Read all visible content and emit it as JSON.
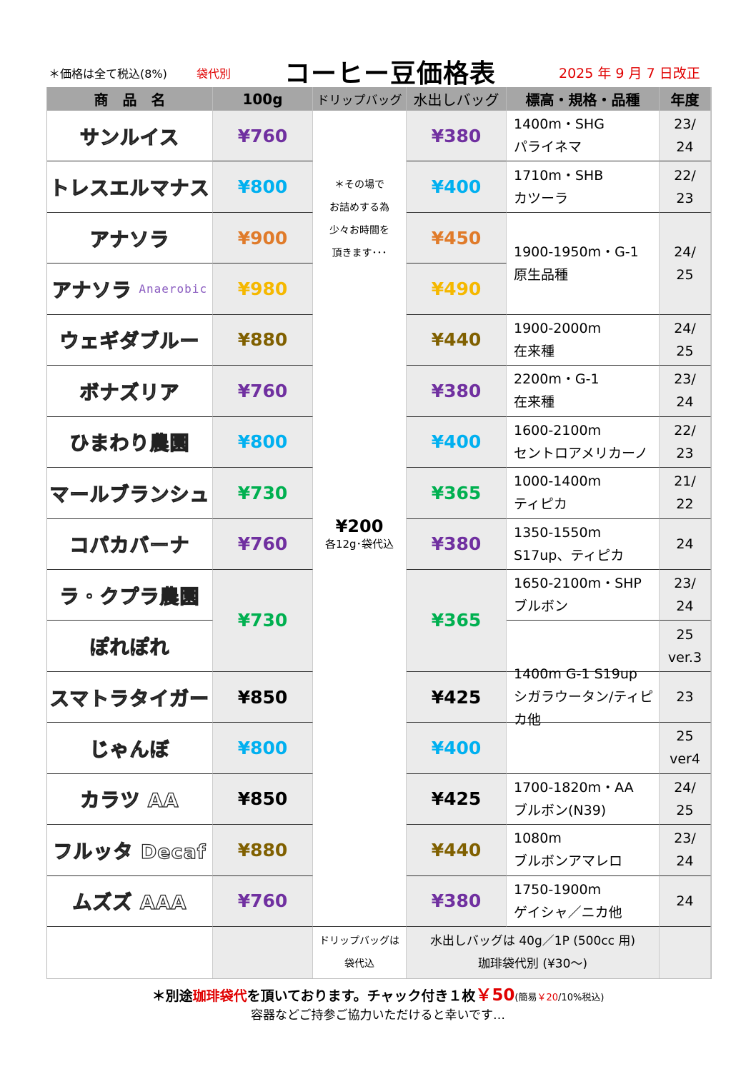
{
  "header": {
    "tax_note": "＊価格は全て税込(8%)",
    "bag_note": "袋代別",
    "title": "コーヒー豆価格表",
    "revised": "2025 年 9 月 7 日改正"
  },
  "columns": [
    "商　品　名",
    "100g",
    "ドリップバッグ",
    "水出しバッグ",
    "標高・規格・品種",
    "年度"
  ],
  "colors": {
    "purple": "#7030a0",
    "cyan": "#00b0f0",
    "orange": "#e07b2a",
    "gold": "#f5b800",
    "olive": "#806000",
    "green": "#00b050",
    "black": "#000000",
    "red": "#e00000"
  },
  "rows": [
    {
      "name": "サンルイス",
      "price": "¥760",
      "water": "¥380",
      "color": "purple",
      "spec": [
        "1400m・SHG",
        "パライネマ"
      ],
      "year": [
        "23/",
        "24"
      ]
    },
    {
      "name": "トレスエルマナス",
      "price": "¥800",
      "water": "¥400",
      "color": "cyan",
      "spec": [
        "1710m・SHB",
        "カツーラ"
      ],
      "year": [
        "22/",
        "23"
      ]
    },
    {
      "name": "アナソラ",
      "price": "¥900",
      "water": "¥450",
      "color": "orange",
      "spec": [
        "1900-1950m・G-1",
        "原生品種"
      ],
      "year": [
        "24/",
        "25"
      ],
      "spec_span": 2
    },
    {
      "name": "アナソラ",
      "name_sub": "Anaerobic",
      "price": "¥980",
      "water": "¥490",
      "color": "gold"
    },
    {
      "name": "ウェギダブルー",
      "price": "¥880",
      "water": "¥440",
      "color": "olive",
      "spec": [
        "1900-2000m",
        "在来種"
      ],
      "year": [
        "24/",
        "25"
      ]
    },
    {
      "name": "ボナズリア",
      "price": "¥760",
      "water": "¥380",
      "color": "purple",
      "spec": [
        "2200m・G-1",
        "在来種"
      ],
      "year": [
        "23/",
        "24"
      ]
    },
    {
      "name": "ひまわり農園",
      "price": "¥800",
      "water": "¥400",
      "color": "cyan",
      "spec": [
        "1600-2100m",
        "セントロアメリカーノ"
      ],
      "year": [
        "22/",
        "23"
      ]
    },
    {
      "name": "マールブランシュ",
      "price": "¥730",
      "water": "¥365",
      "color": "green",
      "spec": [
        "1000-1400m",
        "ティピカ"
      ],
      "year": [
        "21/",
        "22"
      ]
    },
    {
      "name": "コパカバーナ",
      "price": "¥760",
      "water": "¥380",
      "color": "purple",
      "spec": [
        "1350-1550m",
        "S17up、ティピカ"
      ],
      "year": [
        "24"
      ]
    },
    {
      "name": "ラ・クプラ農園",
      "price": "¥730",
      "water": "¥365",
      "color": "green",
      "price_span": 2,
      "spec": [
        "1650-2100m・SHP",
        "ブルボン"
      ],
      "year": [
        "23/",
        "24"
      ]
    },
    {
      "name": "ぽれぽれ",
      "spec": [],
      "year": [
        "25",
        "ver.3"
      ]
    },
    {
      "name": "スマトラタイガー",
      "price": "¥850",
      "water": "¥425",
      "color": "black",
      "spec": [
        "1400m G-1 S19up",
        "シガラウータン/ティピカ他"
      ],
      "year": [
        "23"
      ]
    },
    {
      "name": "じゃんぼ",
      "price": "¥800",
      "water": "¥400",
      "color": "cyan",
      "spec": [],
      "year": [
        "25",
        "ver4"
      ]
    },
    {
      "name": "カラツ AA",
      "price": "¥850",
      "water": "¥425",
      "color": "black",
      "spec": [
        "1700-1820m・AA",
        "ブルボン(N39)"
      ],
      "year": [
        "24/",
        "25"
      ]
    },
    {
      "name": "フルッタ Decaf",
      "price": "¥880",
      "water": "¥440",
      "color": "olive",
      "spec": [
        "1080m",
        "ブルボンアマレロ"
      ],
      "year": [
        "23/",
        "24"
      ]
    },
    {
      "name": "ムズズ AAA",
      "price": "¥760",
      "water": "¥380",
      "color": "purple",
      "spec": [
        "1750-1900m",
        "ゲイシャ／ニカ他"
      ],
      "year": [
        "24"
      ]
    }
  ],
  "drip": {
    "note": [
      "＊その場で",
      "お詰めする為",
      "少々お時間を",
      "頂きます･･･"
    ],
    "price": "¥200",
    "detail": "各12g･袋代込"
  },
  "footer_row": {
    "drip": [
      "ドリップバッグは",
      "袋代込"
    ],
    "water": [
      "水出しバッグは 40g／1P (500cc 用)",
      "珈琲袋代別 (¥30～)"
    ]
  },
  "footnotes": {
    "line1_a": "＊別途",
    "line1_b": "珈琲袋代",
    "line1_c": "を頂いております。チャック付き１枚",
    "line1_d": "￥50",
    "line1_e": "(簡易",
    "line1_f": "￥20",
    "line1_g": "/10%税込)",
    "line2": "容器などご持参ご協力いただけると幸いです…"
  }
}
